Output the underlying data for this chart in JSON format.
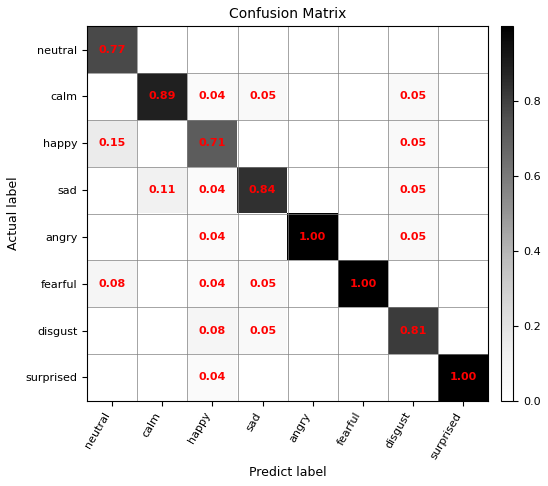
{
  "title": "Confusion Matrix",
  "xlabel": "Predict label",
  "ylabel": "Actual label",
  "classes": [
    "neutral",
    "calm",
    "happy",
    "sad",
    "angry",
    "fearful",
    "disgust",
    "surprised"
  ],
  "matrix": [
    [
      0.77,
      0.0,
      0.0,
      0.0,
      0.0,
      0.0,
      0.0,
      0.0
    ],
    [
      0.0,
      0.89,
      0.04,
      0.05,
      0.0,
      0.0,
      0.05,
      0.0
    ],
    [
      0.15,
      0.0,
      0.71,
      0.0,
      0.0,
      0.0,
      0.05,
      0.0
    ],
    [
      0.0,
      0.11,
      0.04,
      0.84,
      0.0,
      0.0,
      0.05,
      0.0
    ],
    [
      0.0,
      0.0,
      0.04,
      0.0,
      1.0,
      0.0,
      0.05,
      0.0
    ],
    [
      0.08,
      0.0,
      0.04,
      0.05,
      0.0,
      1.0,
      0.0,
      0.0
    ],
    [
      0.0,
      0.0,
      0.08,
      0.05,
      0.0,
      0.0,
      0.81,
      0.0
    ],
    [
      0.0,
      0.0,
      0.04,
      0.0,
      0.0,
      0.0,
      0.0,
      1.0
    ]
  ],
  "text_color": "red",
  "cmap": "Greys",
  "colorbar_ticks": [
    0.0,
    0.2,
    0.4,
    0.6,
    0.8
  ],
  "vmin": 0.0,
  "vmax": 1.0,
  "title_fontsize": 10,
  "label_fontsize": 9,
  "tick_fontsize": 8,
  "cell_fontsize": 8,
  "figwidth": 5.48,
  "figheight": 4.86,
  "dpi": 100
}
